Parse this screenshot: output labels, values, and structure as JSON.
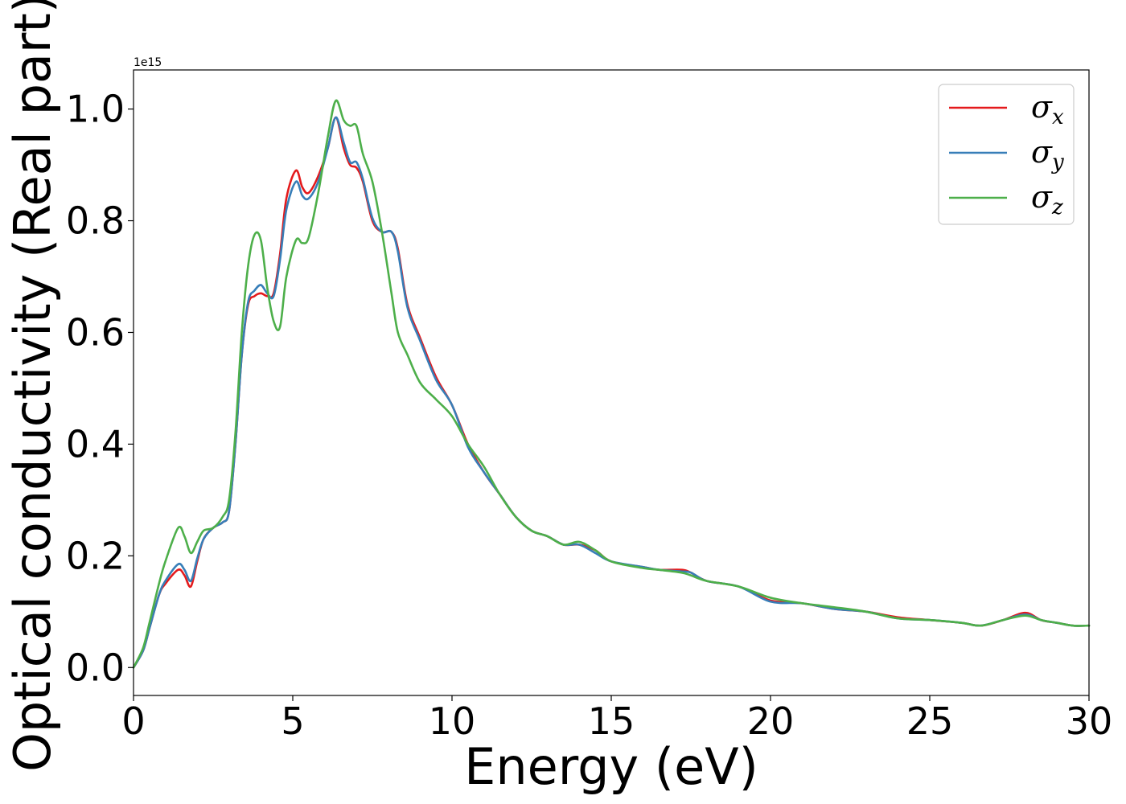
{
  "chart_data": {
    "type": "line",
    "title": "",
    "xlabel": "Energy (eV)",
    "ylabel": "Optical conductivity (Real part)",
    "y_offset_label": "1e15",
    "xlim": [
      0,
      30
    ],
    "ylim": [
      -0.05,
      1.07
    ],
    "xticks": [
      0,
      5,
      10,
      15,
      20,
      25,
      30
    ],
    "xtick_labels": [
      "0",
      "5",
      "10",
      "15",
      "20",
      "25",
      "30"
    ],
    "yticks": [
      0.0,
      0.2,
      0.4,
      0.6,
      0.8,
      1.0
    ],
    "ytick_labels": [
      "0.0",
      "0.2",
      "0.4",
      "0.6",
      "0.8",
      "1.0"
    ],
    "grid": false,
    "legend_position": "top-right",
    "series": [
      {
        "name": "σx",
        "legend_base": "σ",
        "legend_sub": "x",
        "color": "#e41a1c",
        "x": [
          0,
          0.3,
          0.5,
          0.8,
          1.0,
          1.4,
          1.6,
          1.8,
          2.0,
          2.2,
          2.5,
          2.8,
          3.0,
          3.2,
          3.4,
          3.6,
          3.8,
          4.0,
          4.2,
          4.4,
          4.6,
          4.8,
          5.1,
          5.3,
          5.5,
          5.8,
          6.1,
          6.35,
          6.6,
          6.8,
          7.0,
          7.2,
          7.5,
          7.8,
          8.1,
          8.3,
          8.6,
          9.0,
          9.5,
          10.0,
          10.5,
          11.0,
          11.5,
          12.0,
          12.5,
          13.0,
          13.5,
          14.0,
          14.5,
          15.0,
          16.0,
          16.5,
          17.2,
          17.5,
          18.0,
          19.0,
          20.0,
          21.0,
          22.0,
          23.0,
          24.0,
          25.0,
          26.0,
          26.6,
          27.3,
          28.0,
          28.5,
          29.0,
          29.5,
          30.0
        ],
        "values": [
          0.0,
          0.03,
          0.07,
          0.13,
          0.15,
          0.175,
          0.165,
          0.145,
          0.19,
          0.23,
          0.25,
          0.26,
          0.28,
          0.4,
          0.56,
          0.65,
          0.665,
          0.67,
          0.665,
          0.67,
          0.74,
          0.84,
          0.89,
          0.86,
          0.85,
          0.88,
          0.93,
          0.985,
          0.93,
          0.9,
          0.895,
          0.87,
          0.8,
          0.78,
          0.78,
          0.75,
          0.65,
          0.59,
          0.52,
          0.47,
          0.4,
          0.35,
          0.31,
          0.27,
          0.245,
          0.235,
          0.22,
          0.22,
          0.21,
          0.19,
          0.18,
          0.175,
          0.175,
          0.17,
          0.155,
          0.145,
          0.12,
          0.115,
          0.105,
          0.1,
          0.09,
          0.085,
          0.08,
          0.075,
          0.085,
          0.098,
          0.085,
          0.08,
          0.075,
          0.075
        ]
      },
      {
        "name": "σy",
        "legend_base": "σ",
        "legend_sub": "y",
        "color": "#377eb8",
        "x": [
          0,
          0.3,
          0.5,
          0.8,
          1.0,
          1.4,
          1.6,
          1.8,
          2.0,
          2.2,
          2.5,
          2.8,
          3.0,
          3.2,
          3.4,
          3.6,
          3.8,
          4.0,
          4.2,
          4.4,
          4.6,
          4.8,
          5.1,
          5.3,
          5.5,
          5.8,
          6.1,
          6.35,
          6.6,
          6.8,
          7.0,
          7.2,
          7.5,
          7.8,
          8.1,
          8.3,
          8.6,
          9.0,
          9.5,
          10.0,
          10.5,
          11.0,
          11.5,
          12.0,
          12.5,
          13.0,
          13.5,
          14.0,
          14.5,
          15.0,
          16.0,
          16.5,
          17.2,
          17.5,
          18.0,
          19.0,
          20.0,
          21.0,
          22.0,
          23.0,
          24.0,
          25.0,
          26.0,
          26.6,
          27.3,
          28.0,
          28.5,
          29.0,
          29.5,
          30.0
        ],
        "values": [
          0.0,
          0.03,
          0.07,
          0.13,
          0.155,
          0.185,
          0.175,
          0.155,
          0.195,
          0.23,
          0.25,
          0.26,
          0.28,
          0.4,
          0.56,
          0.655,
          0.675,
          0.685,
          0.67,
          0.665,
          0.73,
          0.82,
          0.87,
          0.845,
          0.84,
          0.87,
          0.93,
          0.985,
          0.94,
          0.905,
          0.905,
          0.875,
          0.805,
          0.78,
          0.78,
          0.745,
          0.645,
          0.585,
          0.515,
          0.47,
          0.395,
          0.35,
          0.31,
          0.27,
          0.245,
          0.235,
          0.22,
          0.22,
          0.205,
          0.19,
          0.18,
          0.175,
          0.172,
          0.17,
          0.155,
          0.145,
          0.118,
          0.115,
          0.105,
          0.1,
          0.088,
          0.085,
          0.08,
          0.075,
          0.085,
          0.095,
          0.085,
          0.08,
          0.075,
          0.075
        ]
      },
      {
        "name": "σz",
        "legend_base": "σ",
        "legend_sub": "z",
        "color": "#4daf4a",
        "x": [
          0,
          0.3,
          0.5,
          0.8,
          1.0,
          1.4,
          1.6,
          1.8,
          2.0,
          2.2,
          2.5,
          2.8,
          3.0,
          3.2,
          3.4,
          3.6,
          3.8,
          4.0,
          4.2,
          4.4,
          4.6,
          4.8,
          5.1,
          5.3,
          5.5,
          5.8,
          6.1,
          6.35,
          6.6,
          6.8,
          7.0,
          7.2,
          7.5,
          7.8,
          8.1,
          8.3,
          8.6,
          9.0,
          9.5,
          10.0,
          10.5,
          11.0,
          11.5,
          12.0,
          12.5,
          13.0,
          13.5,
          14.0,
          14.5,
          15.0,
          16.0,
          16.5,
          17.2,
          17.5,
          18.0,
          19.0,
          20.0,
          21.0,
          22.0,
          23.0,
          24.0,
          25.0,
          26.0,
          26.6,
          27.3,
          28.0,
          28.5,
          29.0,
          29.5,
          30.0
        ],
        "values": [
          0.0,
          0.035,
          0.08,
          0.15,
          0.19,
          0.25,
          0.235,
          0.205,
          0.225,
          0.245,
          0.25,
          0.27,
          0.3,
          0.42,
          0.6,
          0.72,
          0.775,
          0.765,
          0.68,
          0.62,
          0.61,
          0.7,
          0.765,
          0.76,
          0.77,
          0.85,
          0.95,
          1.015,
          0.98,
          0.97,
          0.97,
          0.92,
          0.87,
          0.78,
          0.67,
          0.6,
          0.56,
          0.51,
          0.48,
          0.45,
          0.4,
          0.36,
          0.31,
          0.27,
          0.245,
          0.235,
          0.22,
          0.225,
          0.21,
          0.19,
          0.178,
          0.175,
          0.17,
          0.165,
          0.155,
          0.145,
          0.125,
          0.115,
          0.108,
          0.1,
          0.088,
          0.085,
          0.08,
          0.075,
          0.085,
          0.093,
          0.085,
          0.08,
          0.075,
          0.075
        ]
      }
    ]
  }
}
